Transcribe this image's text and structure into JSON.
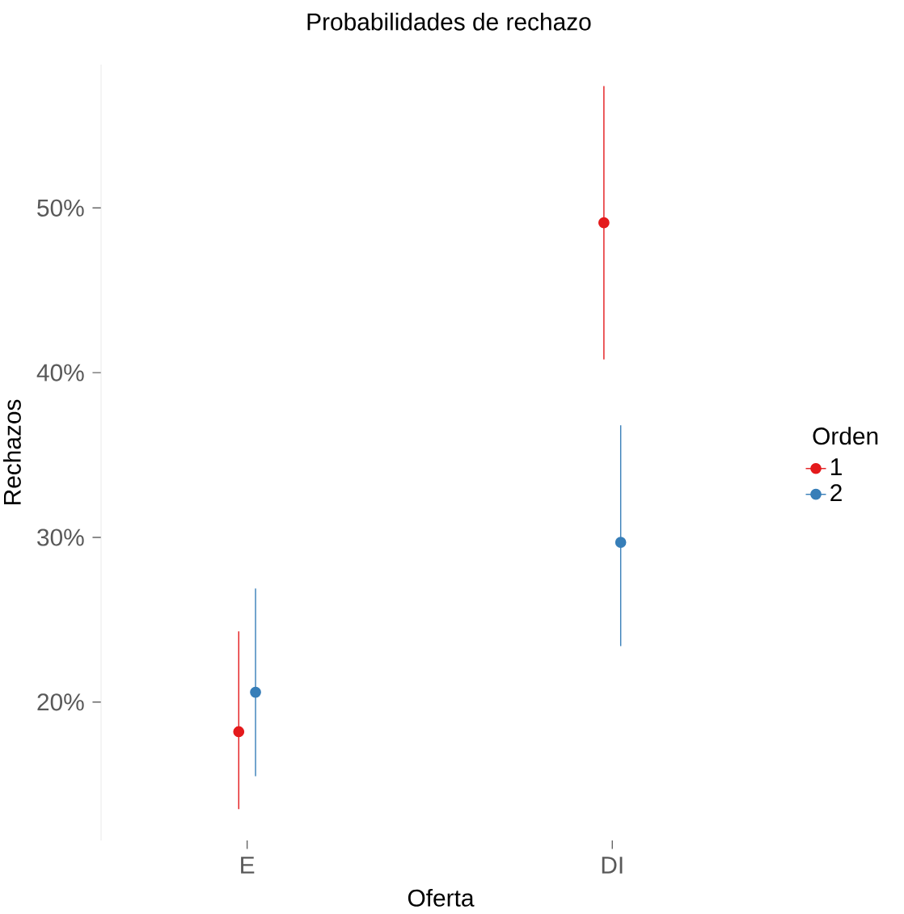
{
  "chart_data": {
    "type": "scatter",
    "title": "Probabilidades de rechazo",
    "xlabel": "Oferta",
    "ylabel": "Rechazos",
    "legend_title": "Orden",
    "categories": [
      "E",
      "DI"
    ],
    "series": [
      {
        "name": "1",
        "color": "#e41a1c",
        "values": [
          18.2,
          49.1
        ],
        "errors": [
          [
            13.5,
            24.3
          ],
          [
            40.8,
            57.4
          ]
        ]
      },
      {
        "name": "2",
        "color": "#377eb8",
        "values": [
          20.6,
          29.7
        ],
        "errors": [
          [
            15.5,
            26.9
          ],
          [
            23.4,
            36.8
          ]
        ]
      }
    ],
    "ylim": [
      11.6,
      58.7
    ],
    "yticks": [
      {
        "value": 20,
        "label": "20%"
      },
      {
        "value": 30,
        "label": "30%"
      },
      {
        "value": 40,
        "label": "40%"
      },
      {
        "value": 50,
        "label": "50%"
      }
    ],
    "marker": "circle",
    "legend": "right"
  }
}
